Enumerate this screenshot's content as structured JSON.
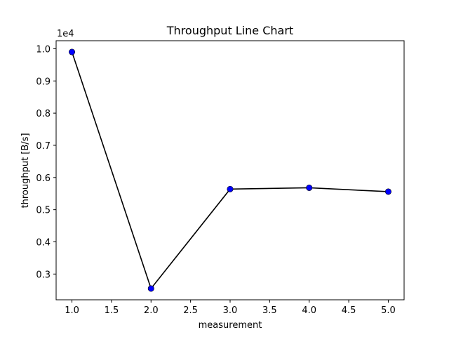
{
  "chart_data": {
    "type": "line",
    "title": "Throughput Line Chart",
    "xlabel": "measurement",
    "ylabel": "throughput [B/s]",
    "y_offset_label": "1e4",
    "x": [
      1.0,
      2.0,
      3.0,
      4.0,
      5.0
    ],
    "series": [
      {
        "values": [
          9900,
          2550,
          5640,
          5680,
          5560
        ],
        "line_color": "#000000",
        "marker_color": "#0000ff"
      }
    ],
    "xlim": [
      0.8,
      5.2
    ],
    "ylim": [
      2200,
      10250
    ],
    "x_ticks": [
      1.0,
      1.5,
      2.0,
      2.5,
      3.0,
      3.5,
      4.0,
      4.5,
      5.0
    ],
    "x_tick_labels": [
      "1.0",
      "1.5",
      "2.0",
      "2.5",
      "3.0",
      "3.5",
      "4.0",
      "4.5",
      "5.0"
    ],
    "y_ticks": [
      3000,
      4000,
      5000,
      6000,
      7000,
      8000,
      9000,
      10000
    ],
    "y_tick_labels": [
      "0.3",
      "0.4",
      "0.5",
      "0.6",
      "0.7",
      "0.8",
      "0.9",
      "1.0"
    ],
    "grid": false,
    "legend": "none"
  }
}
